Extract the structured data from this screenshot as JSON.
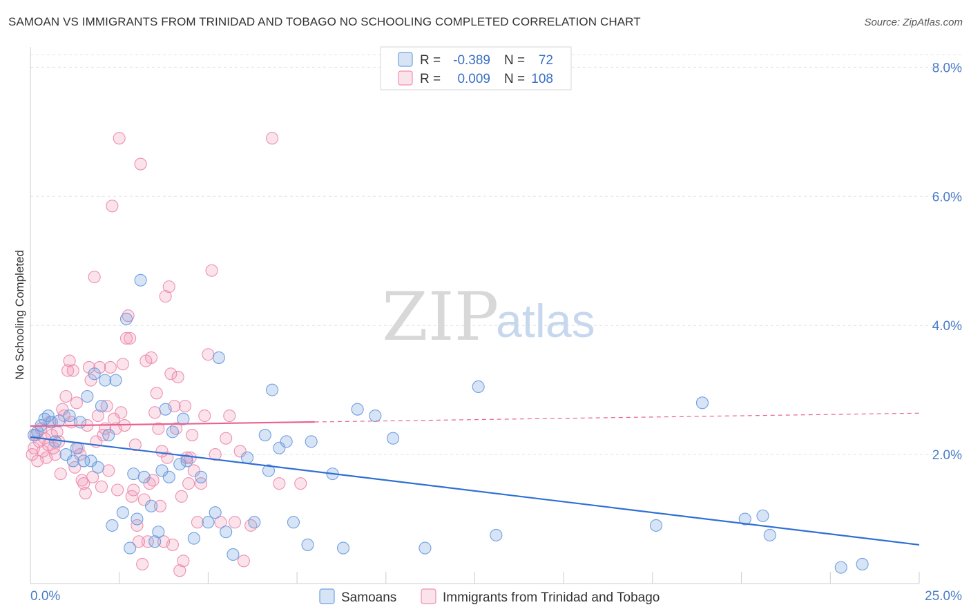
{
  "header": {
    "title": "SAMOAN VS IMMIGRANTS FROM TRINIDAD AND TOBAGO NO SCHOOLING COMPLETED CORRELATION CHART",
    "source": "Source: ZipAtlas.com"
  },
  "watermark": {
    "zip": "ZIP",
    "atlas": "atlas"
  },
  "colors": {
    "samoans": "#6f9fe0",
    "samoans_fill": "rgba(111,159,224,0.28)",
    "samoans_line": "#2e6fd4",
    "trinidad": "#ee8faf",
    "trinidad_fill": "rgba(238,143,175,0.25)",
    "trinidad_line": "#e8628f",
    "grid": "#e3e3e3",
    "axis_labels": "#4a7cc7"
  },
  "legend": {
    "r_label": "R =",
    "n_label": "N =",
    "rows": [
      {
        "r": "-0.389",
        "n": "72"
      },
      {
        "r": "0.009",
        "n": "108"
      }
    ]
  },
  "bottom_legend": [
    "Samoans",
    "Immigrants from Trinidad and Tobago"
  ],
  "chart_data": {
    "type": "scatter",
    "title": "SAMOAN VS IMMIGRANTS FROM TRINIDAD AND TOBAGO NO SCHOOLING COMPLETED CORRELATION CHART",
    "xlabel": "",
    "ylabel": "No Schooling Completed",
    "xlim": [
      0,
      25
    ],
    "ylim": [
      0,
      8.4
    ],
    "x_ticks": [
      0,
      25
    ],
    "x_tick_labels": [
      "0.0%",
      "25.0%"
    ],
    "y_ticks": [
      2,
      4,
      6,
      8
    ],
    "y_tick_labels": [
      "2.0%",
      "4.0%",
      "6.0%",
      "8.0%"
    ],
    "grid": true,
    "legend_position": "top-center",
    "series": [
      {
        "name": "Samoans",
        "r": -0.389,
        "n": 72,
        "trend": {
          "x": [
            0,
            25
          ],
          "y": [
            2.27,
            0.6
          ]
        },
        "points": [
          [
            0.1,
            2.3
          ],
          [
            0.2,
            2.35
          ],
          [
            0.3,
            2.45
          ],
          [
            0.4,
            2.55
          ],
          [
            0.5,
            2.6
          ],
          [
            0.6,
            2.5
          ],
          [
            0.7,
            2.2
          ],
          [
            0.8,
            2.52
          ],
          [
            1.0,
            2.0
          ],
          [
            1.1,
            2.6
          ],
          [
            1.2,
            1.9
          ],
          [
            1.3,
            2.1
          ],
          [
            1.4,
            2.5
          ],
          [
            1.5,
            1.9
          ],
          [
            1.6,
            2.9
          ],
          [
            1.7,
            1.9
          ],
          [
            1.8,
            3.25
          ],
          [
            1.9,
            1.8
          ],
          [
            2.0,
            2.75
          ],
          [
            2.1,
            3.15
          ],
          [
            2.2,
            2.3
          ],
          [
            2.3,
            0.9
          ],
          [
            2.4,
            3.15
          ],
          [
            2.6,
            1.1
          ],
          [
            2.7,
            4.1
          ],
          [
            2.8,
            0.55
          ],
          [
            2.9,
            1.7
          ],
          [
            3.0,
            1.0
          ],
          [
            3.1,
            4.7
          ],
          [
            3.2,
            1.65
          ],
          [
            3.4,
            1.2
          ],
          [
            3.5,
            0.65
          ],
          [
            3.6,
            0.8
          ],
          [
            3.7,
            1.75
          ],
          [
            3.8,
            2.7
          ],
          [
            3.9,
            1.65
          ],
          [
            4.0,
            2.35
          ],
          [
            4.2,
            1.85
          ],
          [
            4.3,
            2.55
          ],
          [
            4.4,
            1.9
          ],
          [
            4.6,
            0.7
          ],
          [
            4.8,
            1.65
          ],
          [
            5.0,
            0.95
          ],
          [
            5.2,
            1.1
          ],
          [
            5.3,
            3.5
          ],
          [
            5.5,
            0.8
          ],
          [
            5.7,
            0.45
          ],
          [
            6.1,
            1.95
          ],
          [
            6.3,
            0.95
          ],
          [
            6.6,
            2.3
          ],
          [
            6.7,
            1.75
          ],
          [
            6.8,
            3.0
          ],
          [
            7.0,
            2.1
          ],
          [
            7.2,
            2.2
          ],
          [
            7.4,
            0.95
          ],
          [
            7.8,
            0.6
          ],
          [
            7.9,
            2.2
          ],
          [
            8.5,
            1.7
          ],
          [
            8.8,
            0.55
          ],
          [
            9.2,
            2.7
          ],
          [
            9.7,
            2.6
          ],
          [
            10.2,
            2.25
          ],
          [
            11.1,
            0.55
          ],
          [
            12.6,
            3.05
          ],
          [
            13.1,
            0.75
          ],
          [
            17.6,
            0.9
          ],
          [
            18.9,
            2.8
          ],
          [
            20.1,
            1.0
          ],
          [
            20.6,
            1.05
          ],
          [
            20.8,
            0.75
          ],
          [
            22.8,
            0.25
          ],
          [
            23.4,
            0.3
          ]
        ]
      },
      {
        "name": "Immigrants from Trinidad and Tobago",
        "r": 0.009,
        "n": 108,
        "trend": {
          "x": [
            0,
            25
          ],
          "y": [
            2.44,
            2.64
          ]
        },
        "trend_solid_until": 8,
        "points": [
          [
            0.05,
            2.0
          ],
          [
            0.1,
            2.1
          ],
          [
            0.15,
            2.3
          ],
          [
            0.2,
            1.9
          ],
          [
            0.25,
            2.2
          ],
          [
            0.3,
            2.4
          ],
          [
            0.35,
            2.05
          ],
          [
            0.4,
            2.25
          ],
          [
            0.45,
            1.95
          ],
          [
            0.5,
            2.15
          ],
          [
            0.55,
            2.5
          ],
          [
            0.6,
            2.3
          ],
          [
            0.65,
            2.1
          ],
          [
            0.7,
            2.0
          ],
          [
            0.75,
            2.35
          ],
          [
            0.8,
            2.2
          ],
          [
            0.85,
            1.7
          ],
          [
            0.9,
            2.7
          ],
          [
            0.95,
            2.6
          ],
          [
            1.0,
            2.9
          ],
          [
            1.05,
            3.3
          ],
          [
            1.1,
            3.45
          ],
          [
            1.15,
            2.5
          ],
          [
            1.2,
            3.3
          ],
          [
            1.25,
            1.8
          ],
          [
            1.3,
            2.8
          ],
          [
            1.35,
            2.1
          ],
          [
            1.4,
            2.0
          ],
          [
            1.45,
            1.6
          ],
          [
            1.5,
            1.55
          ],
          [
            1.55,
            1.4
          ],
          [
            1.6,
            2.45
          ],
          [
            1.65,
            3.35
          ],
          [
            1.7,
            3.15
          ],
          [
            1.75,
            1.65
          ],
          [
            1.8,
            4.75
          ],
          [
            1.85,
            2.2
          ],
          [
            1.9,
            2.6
          ],
          [
            1.95,
            3.35
          ],
          [
            2.0,
            1.5
          ],
          [
            2.05,
            2.3
          ],
          [
            2.1,
            2.4
          ],
          [
            2.15,
            2.75
          ],
          [
            2.2,
            1.75
          ],
          [
            2.25,
            3.35
          ],
          [
            2.3,
            5.85
          ],
          [
            2.35,
            2.55
          ],
          [
            2.4,
            2.4
          ],
          [
            2.45,
            1.45
          ],
          [
            2.5,
            6.9
          ],
          [
            2.55,
            2.65
          ],
          [
            2.6,
            3.4
          ],
          [
            2.65,
            2.45
          ],
          [
            2.7,
            3.8
          ],
          [
            2.75,
            4.15
          ],
          [
            2.8,
            3.8
          ],
          [
            2.85,
            1.35
          ],
          [
            2.9,
            1.45
          ],
          [
            2.95,
            2.15
          ],
          [
            3.0,
            0.9
          ],
          [
            3.05,
            0.65
          ],
          [
            3.1,
            6.5
          ],
          [
            3.15,
            0.3
          ],
          [
            3.2,
            1.3
          ],
          [
            3.25,
            3.45
          ],
          [
            3.3,
            0.65
          ],
          [
            3.35,
            1.55
          ],
          [
            3.4,
            3.5
          ],
          [
            3.45,
            1.6
          ],
          [
            3.5,
            2.65
          ],
          [
            3.55,
            2.95
          ],
          [
            3.6,
            2.4
          ],
          [
            3.65,
            1.2
          ],
          [
            3.7,
            2.05
          ],
          [
            3.75,
            0.65
          ],
          [
            3.8,
            4.45
          ],
          [
            3.85,
            1.95
          ],
          [
            3.9,
            4.6
          ],
          [
            3.95,
            3.25
          ],
          [
            4.0,
            0.6
          ],
          [
            4.05,
            2.75
          ],
          [
            4.1,
            2.4
          ],
          [
            4.15,
            3.2
          ],
          [
            4.2,
            0.2
          ],
          [
            4.25,
            1.35
          ],
          [
            4.3,
            0.35
          ],
          [
            4.35,
            2.75
          ],
          [
            4.4,
            1.95
          ],
          [
            4.45,
            1.55
          ],
          [
            4.5,
            1.95
          ],
          [
            4.55,
            2.3
          ],
          [
            4.6,
            1.75
          ],
          [
            4.7,
            0.95
          ],
          [
            4.8,
            1.55
          ],
          [
            4.9,
            2.6
          ],
          [
            5.0,
            3.55
          ],
          [
            5.1,
            4.85
          ],
          [
            5.2,
            2.0
          ],
          [
            5.35,
            0.95
          ],
          [
            5.5,
            2.25
          ],
          [
            5.6,
            2.6
          ],
          [
            5.75,
            0.95
          ],
          [
            5.9,
            2.05
          ],
          [
            6.0,
            0.35
          ],
          [
            6.2,
            0.9
          ],
          [
            6.8,
            6.9
          ],
          [
            7.0,
            1.55
          ],
          [
            7.6,
            1.55
          ]
        ]
      }
    ]
  }
}
